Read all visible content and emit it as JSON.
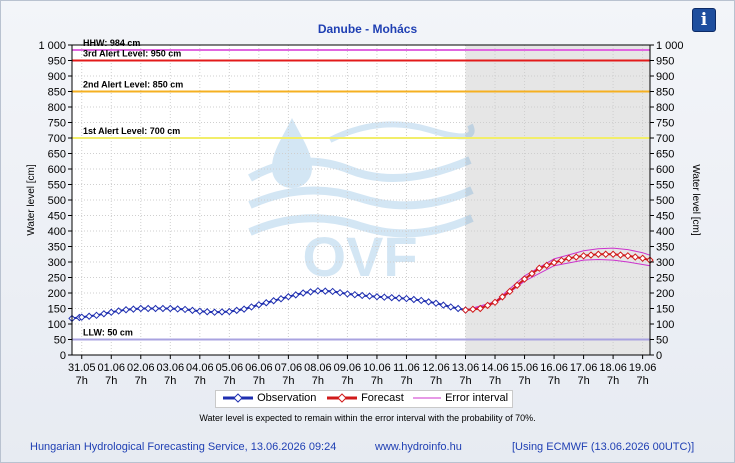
{
  "chart_data": {
    "type": "line",
    "title": "Danube - Mohács",
    "ylabel": "Water level [cm]",
    "y2label": "Water level [cm]",
    "ylim": [
      0,
      1000
    ],
    "yticks": [
      0,
      50,
      100,
      150,
      200,
      250,
      300,
      350,
      400,
      450,
      500,
      550,
      600,
      650,
      700,
      750,
      800,
      850,
      900,
      950,
      1000
    ],
    "ytick_labels": [
      "0",
      "50",
      "100",
      "150",
      "200",
      "250",
      "300",
      "350",
      "400",
      "450",
      "500",
      "550",
      "600",
      "650",
      "700",
      "750",
      "800",
      "850",
      "900",
      "950",
      "1 000"
    ],
    "xlim_days": [
      -0.33,
      19.25
    ],
    "xticks": [
      {
        "date": "31.05",
        "hour": "7h"
      },
      {
        "date": "01.06",
        "hour": "7h"
      },
      {
        "date": "02.06",
        "hour": "7h"
      },
      {
        "date": "03.06",
        "hour": "7h"
      },
      {
        "date": "04.06",
        "hour": "7h"
      },
      {
        "date": "05.06",
        "hour": "7h"
      },
      {
        "date": "06.06",
        "hour": "7h"
      },
      {
        "date": "07.06",
        "hour": "7h"
      },
      {
        "date": "08.06",
        "hour": "7h"
      },
      {
        "date": "09.06",
        "hour": "7h"
      },
      {
        "date": "10.06",
        "hour": "7h"
      },
      {
        "date": "11.06",
        "hour": "7h"
      },
      {
        "date": "12.06",
        "hour": "7h"
      },
      {
        "date": "13.06",
        "hour": "7h"
      },
      {
        "date": "14.06",
        "hour": "7h"
      },
      {
        "date": "15.06",
        "hour": "7h"
      },
      {
        "date": "16.06",
        "hour": "7h"
      },
      {
        "date": "17.06",
        "hour": "7h"
      },
      {
        "date": "18.06",
        "hour": "7h"
      },
      {
        "date": "19.06",
        "hour": "7h"
      }
    ],
    "forecast_start_day": 13,
    "grid": true,
    "legend_position": "bottom-center",
    "thresholds": [
      {
        "label": "HHW: 984 cm",
        "value": 984,
        "color": "#e066e0"
      },
      {
        "label": "3rd Alert Level: 950 cm",
        "value": 950,
        "color": "#e31a1a"
      },
      {
        "label": "2nd Alert Level: 850 cm",
        "value": 850,
        "color": "#f5b021"
      },
      {
        "label": "1st Alert Level: 700 cm",
        "value": 700,
        "color": "#f2ee6a"
      },
      {
        "label": "LLW: 50 cm",
        "value": 50,
        "color": "#a9a3e0"
      }
    ],
    "series": [
      {
        "name": "Observation",
        "color": "#1f2fb0",
        "points": [
          [
            -0.33,
            118
          ],
          [
            0,
            122
          ],
          [
            0.5,
            128
          ],
          [
            1,
            138
          ],
          [
            1.5,
            146
          ],
          [
            2,
            150
          ],
          [
            2.5,
            150
          ],
          [
            3,
            150
          ],
          [
            3.5,
            147
          ],
          [
            4,
            141
          ],
          [
            4.5,
            138
          ],
          [
            5,
            140
          ],
          [
            5.5,
            148
          ],
          [
            6,
            162
          ],
          [
            6.5,
            175
          ],
          [
            7,
            188
          ],
          [
            7.5,
            200
          ],
          [
            8,
            207
          ],
          [
            8.5,
            205
          ],
          [
            9,
            197
          ],
          [
            9.5,
            192
          ],
          [
            10,
            188
          ],
          [
            10.5,
            185
          ],
          [
            11,
            182
          ],
          [
            11.5,
            176
          ],
          [
            12,
            167
          ],
          [
            12.5,
            155
          ],
          [
            13,
            145
          ]
        ]
      },
      {
        "name": "Forecast",
        "color": "#d11a1a",
        "points": [
          [
            13,
            145
          ],
          [
            13.5,
            150
          ],
          [
            14,
            170
          ],
          [
            14.5,
            205
          ],
          [
            15,
            245
          ],
          [
            15.5,
            280
          ],
          [
            16,
            298
          ],
          [
            16.5,
            312
          ],
          [
            17,
            320
          ],
          [
            17.5,
            325
          ],
          [
            18,
            325
          ],
          [
            18.5,
            320
          ],
          [
            19,
            312
          ],
          [
            19.25,
            306
          ]
        ]
      },
      {
        "name": "Error interval",
        "color": "#cc33cc",
        "upper": [
          [
            13,
            145
          ],
          [
            14,
            172
          ],
          [
            15,
            255
          ],
          [
            16,
            310
          ],
          [
            17,
            336
          ],
          [
            17.5,
            343
          ],
          [
            18,
            345
          ],
          [
            18.5,
            340
          ],
          [
            19,
            330
          ],
          [
            19.25,
            322
          ]
        ],
        "lower": [
          [
            13,
            145
          ],
          [
            14,
            166
          ],
          [
            15,
            238
          ],
          [
            16,
            288
          ],
          [
            17,
            306
          ],
          [
            17.5,
            308
          ],
          [
            18,
            306
          ],
          [
            18.5,
            300
          ],
          [
            19,
            292
          ],
          [
            19.25,
            288
          ]
        ]
      }
    ]
  },
  "info_button": "i",
  "watermark": "OVF",
  "note": "Water level is expected to remain within the error interval with the probability of 70%.",
  "footer": {
    "service": "Hungarian Hydrological Forecasting Service, 13.06.2026 09:24",
    "website": "www.hydroinfo.hu",
    "model": "[Using ECMWF (13.06.2026  00UTC)]"
  }
}
